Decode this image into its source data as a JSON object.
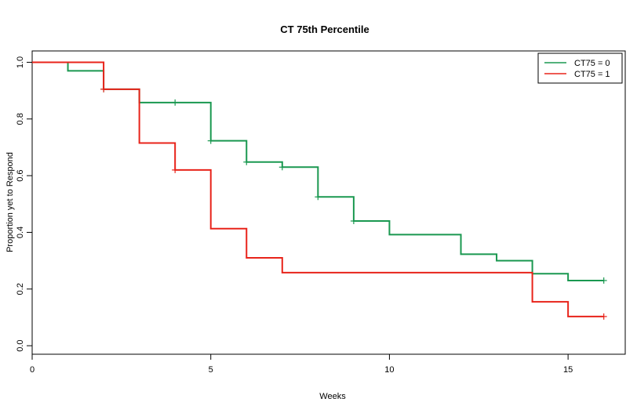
{
  "chart_data": {
    "type": "line",
    "title": "CT 75th Percentile",
    "xlabel": "Weeks",
    "ylabel": "Proportion yet to Respond",
    "xlim": [
      0,
      16.6
    ],
    "ylim": [
      -0.03,
      1.04
    ],
    "x_ticks": [
      0,
      5,
      10,
      15
    ],
    "y_ticks": [
      0.0,
      0.2,
      0.4,
      0.6,
      0.8,
      1.0
    ],
    "y_tick_labels": [
      "0.0",
      "0.2",
      "0.4",
      "0.6",
      "0.8",
      "1.0"
    ],
    "legend_position": "top-right",
    "grid": false,
    "step": true,
    "series": [
      {
        "name": "CT75 = 0",
        "color": "#1a9850",
        "points": [
          [
            0,
            1.0
          ],
          [
            1,
            0.97
          ],
          [
            2,
            0.905
          ],
          [
            3,
            0.858
          ],
          [
            5,
            0.723
          ],
          [
            6,
            0.648
          ],
          [
            7,
            0.63
          ],
          [
            8,
            0.525
          ],
          [
            9,
            0.44
          ],
          [
            10,
            0.392
          ],
          [
            12,
            0.323
          ],
          [
            13,
            0.3
          ],
          [
            14,
            0.254
          ],
          [
            15,
            0.23
          ],
          [
            16,
            0.23
          ]
        ],
        "censored_x": [
          2,
          4,
          5,
          6,
          7,
          8,
          9,
          16
        ]
      },
      {
        "name": "CT75 = 1",
        "color": "#e8231a",
        "points": [
          [
            0,
            1.0
          ],
          [
            2,
            0.905
          ],
          [
            3,
            0.715
          ],
          [
            4,
            0.62
          ],
          [
            5,
            0.413
          ],
          [
            6,
            0.31
          ],
          [
            7,
            0.258
          ],
          [
            14,
            0.155
          ],
          [
            15,
            0.103
          ],
          [
            16,
            0.103
          ]
        ],
        "censored_x": [
          2,
          4,
          16
        ]
      }
    ]
  }
}
